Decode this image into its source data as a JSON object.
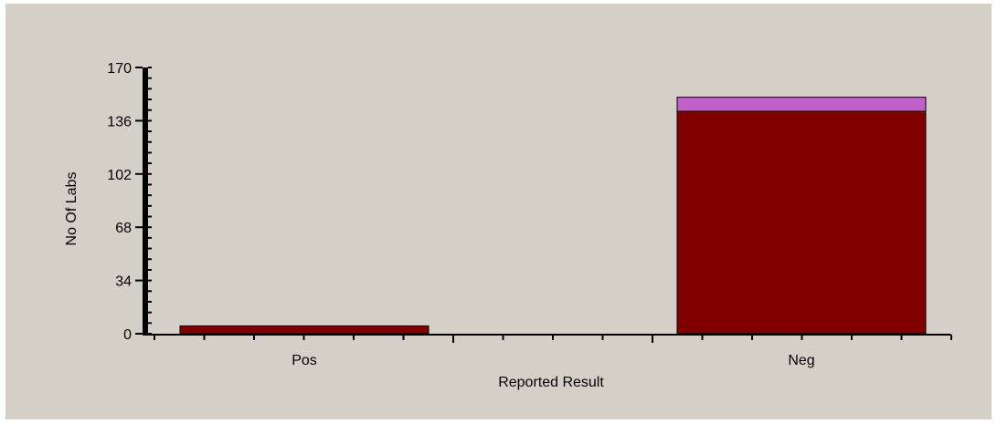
{
  "chart_data": {
    "type": "bar",
    "stacked": true,
    "title": "",
    "xlabel": "Reported Result",
    "ylabel": "No Of Labs",
    "categories": [
      "Pos",
      "Neg"
    ],
    "series": [
      {
        "values": [
          5,
          142
        ],
        "color": "#800000"
      },
      {
        "values": [
          0,
          9
        ],
        "color": "#c060c8"
      }
    ],
    "ylim": [
      0,
      170
    ],
    "yticks": [
      0,
      34,
      68,
      102,
      136,
      170
    ],
    "grid": false,
    "legend": "none"
  },
  "colors": {
    "background": "#d4d0c8",
    "axis": "#000000"
  }
}
